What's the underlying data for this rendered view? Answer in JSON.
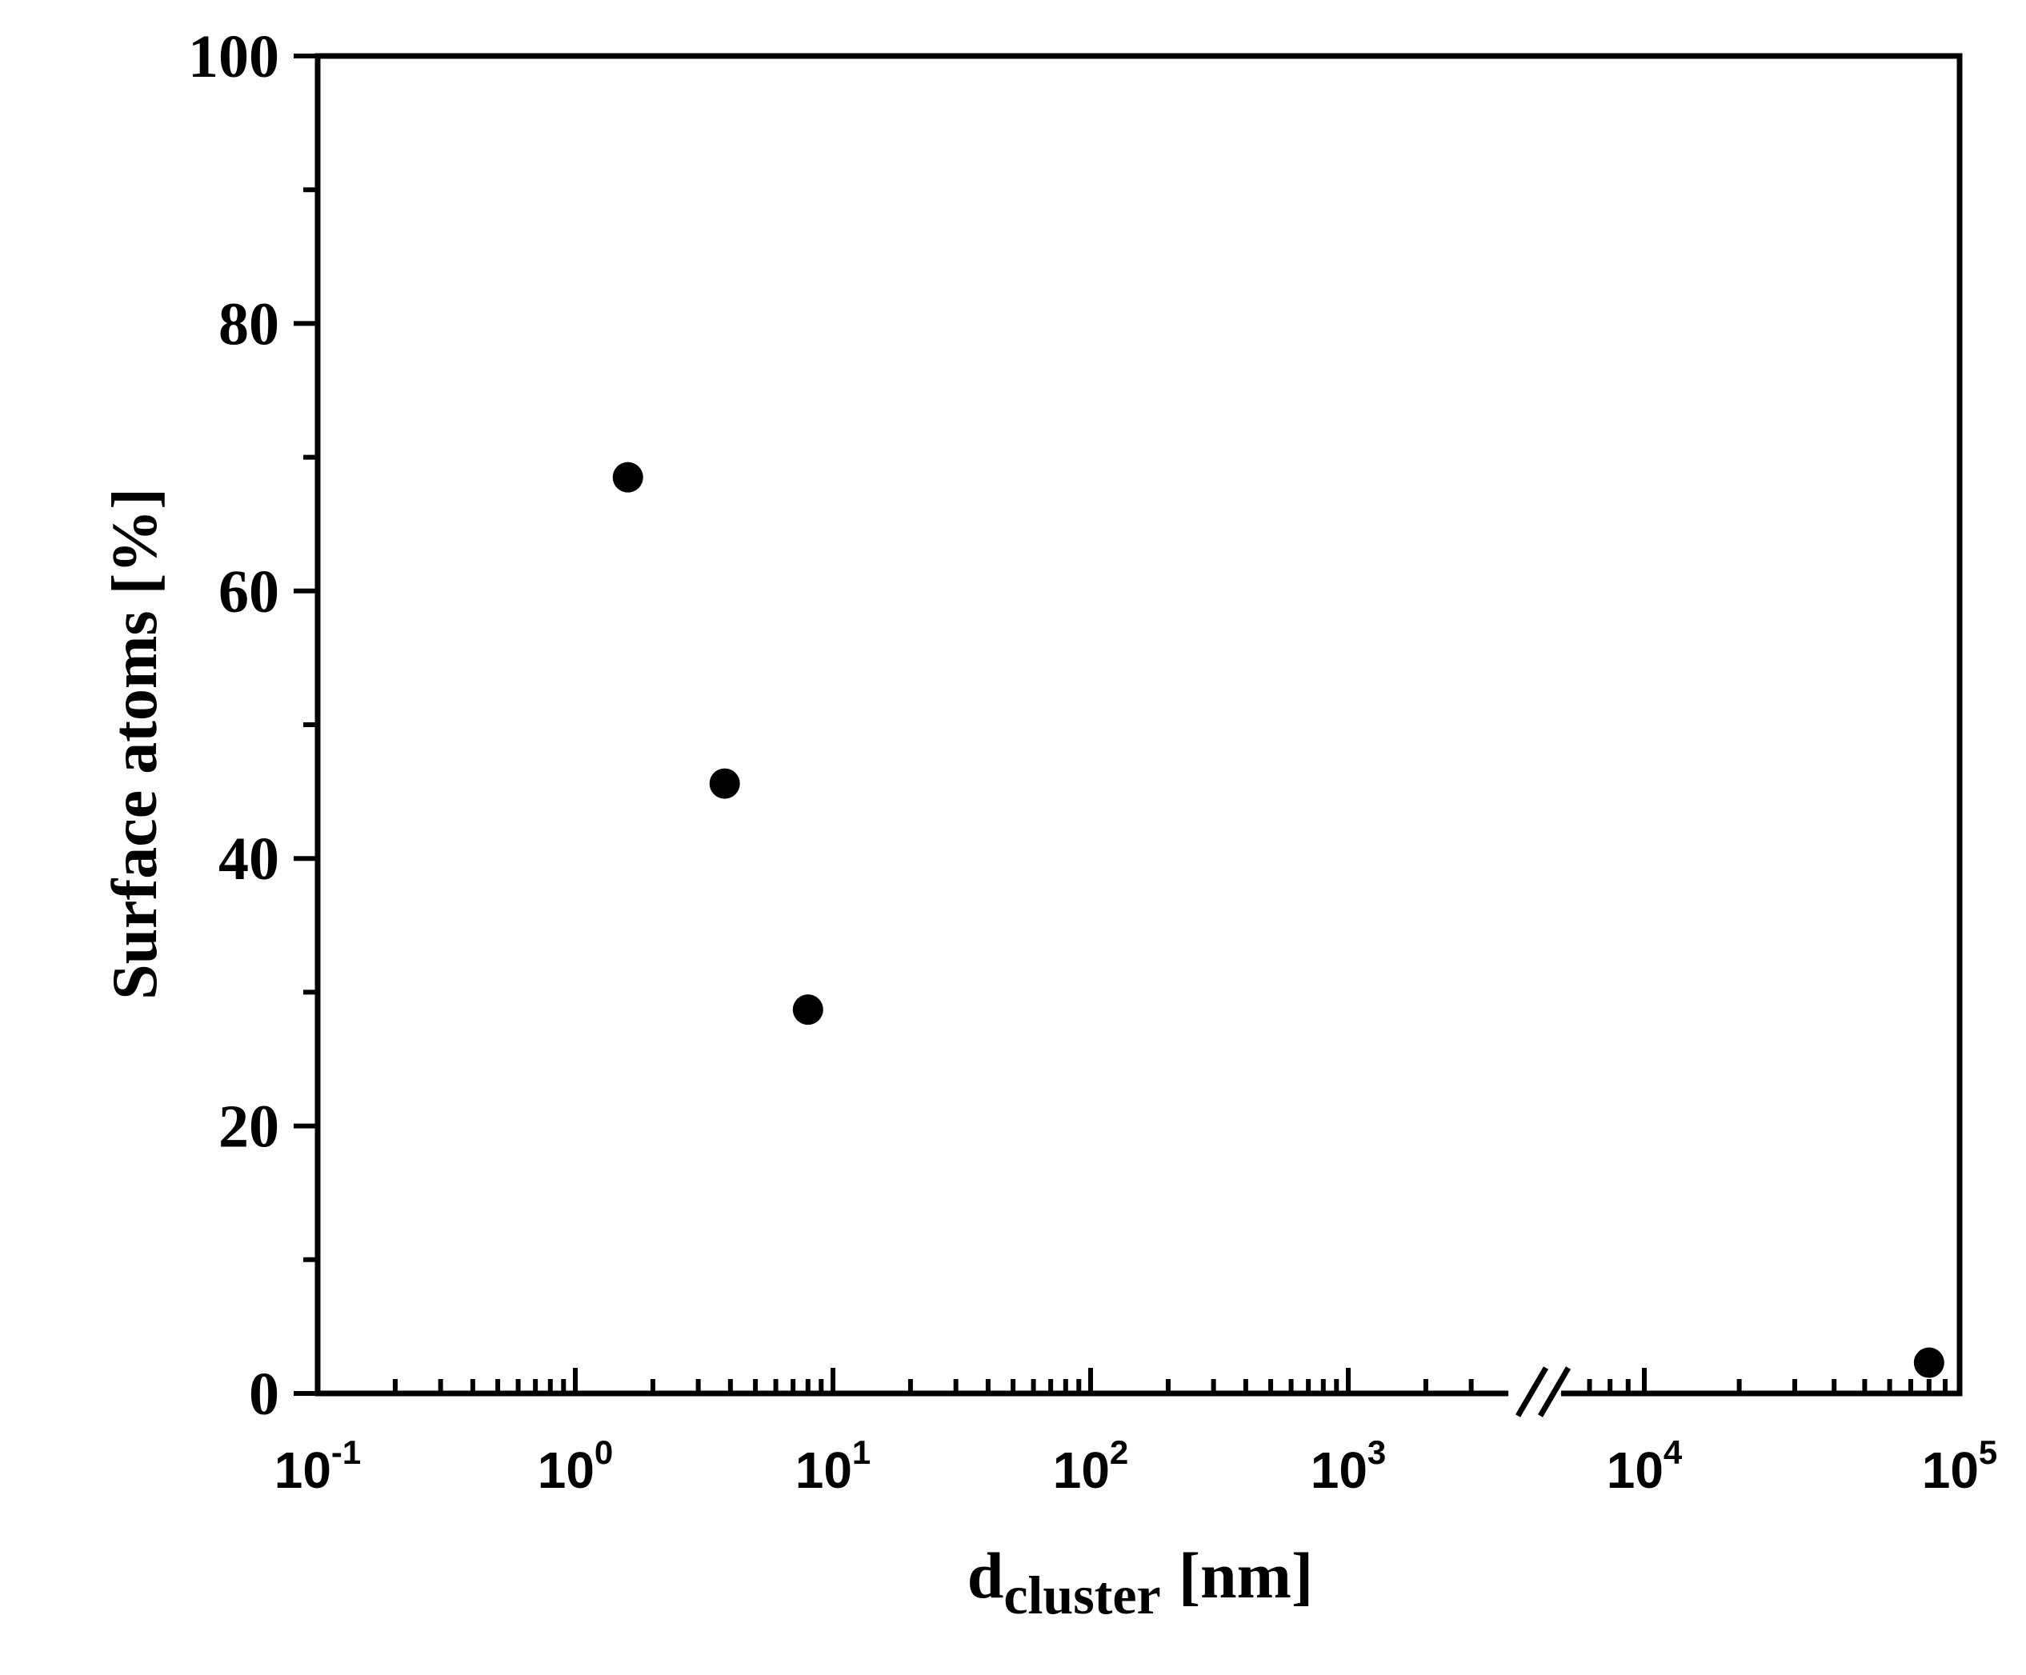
{
  "chart_data": {
    "type": "scatter",
    "xscale": "log",
    "xlim": [
      0.1,
      100000
    ],
    "ylim": [
      0,
      100
    ],
    "axis_break": [
      4000,
      6000
    ],
    "ylabel": "Surface atoms [%]",
    "xlabel": {
      "main": "d",
      "sub": "cluster",
      "unit": "[nm]"
    },
    "yticks": [
      "0",
      "20",
      "40",
      "60",
      "80",
      "100"
    ],
    "xticks": [
      {
        "base": "10",
        "exp": "-1"
      },
      {
        "base": "10",
        "exp": "0"
      },
      {
        "base": "10",
        "exp": "1"
      },
      {
        "base": "10",
        "exp": "2"
      },
      {
        "base": "10",
        "exp": "3"
      },
      {
        "base": "10",
        "exp": "4"
      },
      {
        "base": "10",
        "exp": "5"
      }
    ],
    "points": [
      {
        "x": 1.6,
        "y": 68.5
      },
      {
        "x": 3.8,
        "y": 45.6
      },
      {
        "x": 8.0,
        "y": 28.7
      },
      {
        "x": 80000,
        "y": 2.3
      }
    ],
    "marker_color": "#000000",
    "grid": false
  }
}
